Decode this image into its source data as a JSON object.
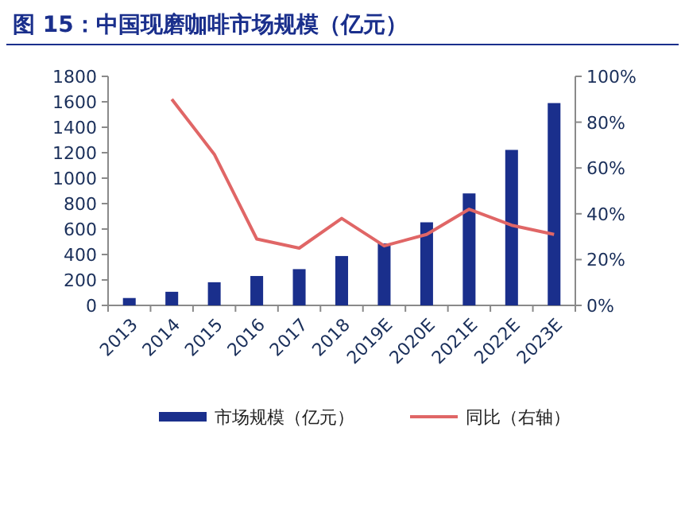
{
  "chart_data": {
    "type": "bar",
    "title": "图 15：中国现磨咖啡市场规模（亿元）",
    "categories": [
      "2013",
      "2014",
      "2015",
      "2016",
      "2017",
      "2018",
      "2019E",
      "2020E",
      "2021E",
      "2022E",
      "2023E"
    ],
    "series": [
      {
        "name": "市场规模（亿元）",
        "color": "#1a2f8c",
        "values": [
          58,
          107,
          182,
          231,
          285,
          388,
          487,
          653,
          880,
          1222,
          1590
        ]
      },
      {
        "name": "同比（右轴）",
        "type": "line",
        "axis": "y2",
        "color": "#e06666",
        "values": [
          null,
          90,
          66,
          29,
          25,
          38,
          26,
          31,
          42,
          35,
          31
        ]
      }
    ],
    "ylim": [
      0,
      1800
    ],
    "yticks": [
      0,
      200,
      400,
      600,
      800,
      1000,
      1200,
      1400,
      1600,
      1800
    ],
    "y2lim": [
      0,
      100
    ],
    "y2ticks": [
      {
        "value": 0,
        "label": "0%"
      },
      {
        "value": 20,
        "label": "20%"
      },
      {
        "value": 40,
        "label": "40%"
      },
      {
        "value": 60,
        "label": "60%"
      },
      {
        "value": 80,
        "label": "80%"
      },
      {
        "value": 100,
        "label": "100%"
      }
    ],
    "legend": "bottom"
  }
}
